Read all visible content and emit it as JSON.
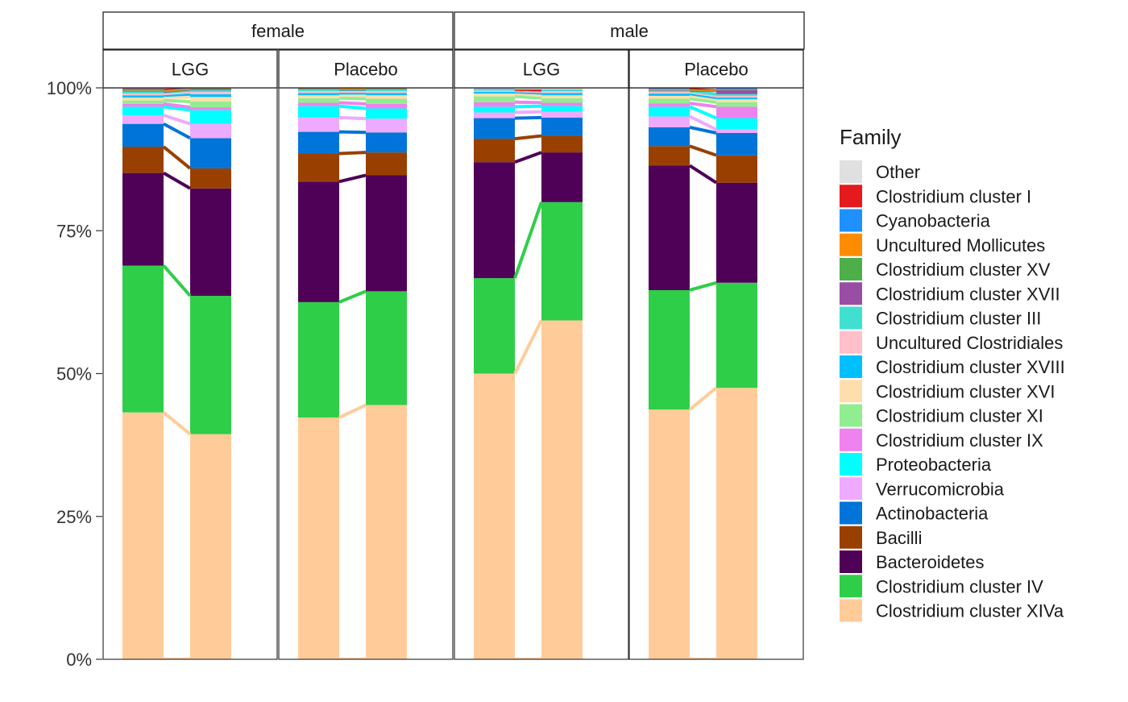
{
  "chart_data": {
    "type": "bar",
    "stacked": true,
    "percent": true,
    "facet_row_labels": [
      "female",
      "male"
    ],
    "facet_col_labels": [
      "LGG",
      "Placebo"
    ],
    "y_ticks": [
      "0%",
      "25%",
      "50%",
      "75%",
      "100%"
    ],
    "ylim": [
      0,
      100
    ],
    "legend_title": "Family",
    "legend_position": "right",
    "grid": false,
    "families": [
      {
        "name": "Other",
        "color": "#E0E0E0"
      },
      {
        "name": "Clostridium cluster I",
        "color": "#E41A1C"
      },
      {
        "name": "Cyanobacteria",
        "color": "#1E90FF"
      },
      {
        "name": "Uncultured Mollicutes",
        "color": "#FF8C00"
      },
      {
        "name": "Clostridium cluster XV",
        "color": "#4DAF4A"
      },
      {
        "name": "Clostridium cluster XVII",
        "color": "#984EA3"
      },
      {
        "name": "Clostridium cluster III",
        "color": "#40E0D0"
      },
      {
        "name": "Uncultured Clostridiales",
        "color": "#FFC0CB"
      },
      {
        "name": "Clostridium cluster XVIII",
        "color": "#00BFFF"
      },
      {
        "name": "Clostridium cluster XVI",
        "color": "#FFDEAD"
      },
      {
        "name": "Clostridium cluster XI",
        "color": "#90EE90"
      },
      {
        "name": "Clostridium cluster IX",
        "color": "#EE82EE"
      },
      {
        "name": "Proteobacteria",
        "color": "#00FFFF"
      },
      {
        "name": "Verrucomicrobia",
        "color": "#EEAAFF"
      },
      {
        "name": "Actinobacteria",
        "color": "#0074D9"
      },
      {
        "name": "Bacilli",
        "color": "#994000"
      },
      {
        "name": "Bacteroidetes",
        "color": "#4F0057"
      },
      {
        "name": "Clostridium cluster IV",
        "color": "#2ECE48"
      },
      {
        "name": "Clostridium cluster XIVa",
        "color": "#FFCC99"
      }
    ],
    "stack_order": [
      "Clostridium cluster XIVa",
      "Clostridium cluster IV",
      "Bacteroidetes",
      "Bacilli",
      "Actinobacteria",
      "Verrucomicrobia",
      "Proteobacteria",
      "Clostridium cluster IX",
      "Clostridium cluster XI",
      "Clostridium cluster XVI",
      "Clostridium cluster XVIII",
      "Uncultured Clostridiales",
      "Clostridium cluster III",
      "Clostridium cluster XVII",
      "Clostridium cluster XV",
      "Uncultured Mollicutes",
      "Cyanobacteria",
      "Clostridium cluster I",
      "Other"
    ],
    "panels": [
      {
        "sex": "female",
        "group": "LGG",
        "bars": [
          [
            43.2,
            25.7,
            16.2,
            4.6,
            4.0,
            1.5,
            1.5,
            0.5,
            0.6,
            0.5,
            0.4,
            0.3,
            0.3,
            0.1,
            0.1,
            0.1,
            0.2,
            0.1,
            0.2
          ],
          [
            39.4,
            24.2,
            18.8,
            3.5,
            5.3,
            2.5,
            2.4,
            0.5,
            1.0,
            0.8,
            0.5,
            0.4,
            0.3,
            0.2,
            0.1,
            0.1,
            0.2,
            0.1,
            0.2
          ]
        ]
      },
      {
        "sex": "female",
        "group": "Placebo",
        "bars": [
          [
            42.3,
            20.2,
            21.1,
            4.9,
            3.8,
            2.5,
            2.0,
            0.6,
            0.8,
            0.5,
            0.4,
            0.3,
            0.3,
            0.1,
            0.1,
            0.1,
            0.2,
            0.1,
            0.3
          ],
          [
            44.5,
            19.9,
            20.3,
            4.0,
            3.5,
            2.4,
            1.8,
            0.8,
            0.9,
            0.6,
            0.4,
            0.3,
            0.3,
            0.1,
            0.1,
            0.1,
            0.2,
            0.1,
            0.3
          ]
        ]
      },
      {
        "sex": "male",
        "group": "LGG",
        "bars": [
          [
            50.0,
            16.7,
            20.3,
            4.1,
            3.6,
            1.0,
            1.0,
            0.8,
            1.0,
            0.5,
            0.3,
            0.2,
            0.2,
            0.0,
            0.0,
            0.0,
            0.1,
            0.0,
            0.2
          ],
          [
            59.3,
            20.7,
            8.7,
            2.9,
            3.2,
            1.0,
            1.0,
            0.6,
            0.8,
            0.5,
            0.4,
            0.3,
            0.2,
            0.0,
            0.0,
            0.0,
            0.1,
            0.0,
            0.3
          ]
        ]
      },
      {
        "sex": "male",
        "group": "Placebo",
        "bars": [
          [
            43.7,
            20.9,
            21.8,
            3.4,
            3.3,
            1.9,
            1.7,
            0.6,
            0.8,
            0.5,
            0.4,
            0.3,
            0.2,
            0.1,
            0.1,
            0.1,
            0.2,
            0.0,
            0.3
          ],
          [
            47.5,
            18.4,
            17.5,
            4.8,
            3.9,
            0.6,
            2.0,
            2.0,
            0.8,
            0.5,
            0.3,
            0.3,
            0.3,
            0.7,
            0.1,
            0.0,
            0.2,
            0.0,
            0.1
          ]
        ]
      }
    ]
  }
}
